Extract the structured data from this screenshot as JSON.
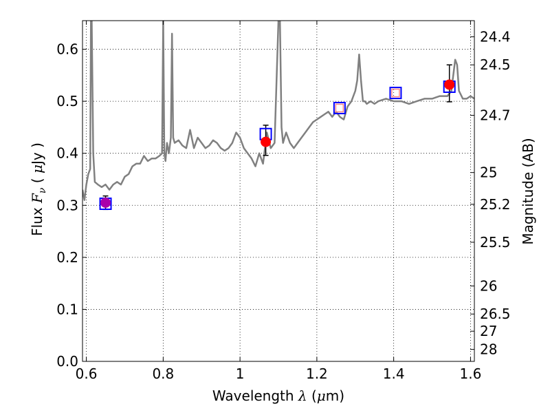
{
  "chart_data": {
    "type": "line",
    "xlabel": {
      "prefix": "Wavelength  ",
      "symbol": "λ",
      "unit_open": " (",
      "unit_mu": "μ",
      "unit_rest": "m)"
    },
    "ylabel": {
      "prefix": "Flux  ",
      "symbol": "F",
      "sub": "ν",
      "unit_open": "  ( ",
      "unit_mu": "μ",
      "unit_rest": "Jy )"
    },
    "y2label": "Magnitude (AB)",
    "xlim": [
      0.59,
      1.61
    ],
    "ylim": [
      0.0,
      0.655
    ],
    "grid": true,
    "xticks": [
      0.6,
      0.8,
      1.0,
      1.2,
      1.4,
      1.6
    ],
    "xtick_labels": [
      "0.6",
      "0.8",
      "1",
      "1.2",
      "1.4",
      "1.6"
    ],
    "yticks": [
      0.0,
      0.1,
      0.2,
      0.3,
      0.4,
      0.5,
      0.6
    ],
    "ytick_labels": [
      "0.0",
      "0.1",
      "0.2",
      "0.3",
      "0.4",
      "0.5",
      "0.6"
    ],
    "y2ticks": [
      {
        "label": "24.4",
        "flux": 0.624
      },
      {
        "label": "24.5",
        "flux": 0.57
      },
      {
        "label": "24.7",
        "flux": 0.473
      },
      {
        "label": "25",
        "flux": 0.363
      },
      {
        "label": "25.2",
        "flux": 0.302
      },
      {
        "label": "25.5",
        "flux": 0.229
      },
      {
        "label": "26",
        "flux": 0.145
      },
      {
        "label": "26.5",
        "flux": 0.091
      },
      {
        "label": "27",
        "flux": 0.058
      },
      {
        "label": "28",
        "flux": 0.023
      }
    ],
    "series": [
      {
        "style": "line",
        "color": "#808080",
        "x": [
          0.59,
          0.595,
          0.6,
          0.605,
          0.61,
          0.612,
          0.614,
          0.618,
          0.622,
          0.63,
          0.64,
          0.65,
          0.66,
          0.67,
          0.68,
          0.69,
          0.7,
          0.71,
          0.72,
          0.73,
          0.74,
          0.75,
          0.76,
          0.77,
          0.78,
          0.79,
          0.797,
          0.8,
          0.803,
          0.806,
          0.81,
          0.815,
          0.82,
          0.823,
          0.826,
          0.83,
          0.84,
          0.85,
          0.86,
          0.87,
          0.88,
          0.89,
          0.9,
          0.91,
          0.92,
          0.93,
          0.94,
          0.95,
          0.96,
          0.97,
          0.98,
          0.99,
          1.0,
          1.01,
          1.02,
          1.03,
          1.04,
          1.05,
          1.06,
          1.07,
          1.08,
          1.09,
          1.1,
          1.104,
          1.108,
          1.112,
          1.116,
          1.12,
          1.13,
          1.14,
          1.15,
          1.16,
          1.17,
          1.18,
          1.19,
          1.2,
          1.21,
          1.22,
          1.23,
          1.24,
          1.25,
          1.26,
          1.27,
          1.28,
          1.29,
          1.3,
          1.305,
          1.31,
          1.315,
          1.32,
          1.325,
          1.33,
          1.34,
          1.35,
          1.36,
          1.38,
          1.4,
          1.42,
          1.44,
          1.46,
          1.48,
          1.5,
          1.52,
          1.54,
          1.55,
          1.56,
          1.565,
          1.57,
          1.58,
          1.59,
          1.6,
          1.61
        ],
        "y": [
          0.33,
          0.31,
          0.34,
          0.36,
          0.37,
          0.655,
          0.655,
          0.4,
          0.345,
          0.34,
          0.335,
          0.34,
          0.33,
          0.34,
          0.345,
          0.34,
          0.355,
          0.36,
          0.375,
          0.38,
          0.38,
          0.395,
          0.385,
          0.39,
          0.39,
          0.395,
          0.4,
          0.655,
          0.4,
          0.385,
          0.42,
          0.4,
          0.43,
          0.63,
          0.43,
          0.42,
          0.425,
          0.415,
          0.41,
          0.445,
          0.41,
          0.43,
          0.42,
          0.41,
          0.415,
          0.425,
          0.42,
          0.41,
          0.405,
          0.41,
          0.42,
          0.44,
          0.43,
          0.41,
          0.4,
          0.39,
          0.375,
          0.4,
          0.38,
          0.44,
          0.41,
          0.42,
          0.655,
          0.655,
          0.45,
          0.42,
          0.43,
          0.44,
          0.42,
          0.41,
          0.42,
          0.43,
          0.44,
          0.45,
          0.46,
          0.465,
          0.47,
          0.475,
          0.48,
          0.47,
          0.48,
          0.47,
          0.465,
          0.49,
          0.5,
          0.52,
          0.54,
          0.59,
          0.54,
          0.5,
          0.5,
          0.495,
          0.5,
          0.495,
          0.5,
          0.505,
          0.5,
          0.5,
          0.495,
          0.5,
          0.505,
          0.505,
          0.51,
          0.51,
          0.52,
          0.58,
          0.57,
          0.52,
          0.505,
          0.505,
          0.51,
          0.505
        ]
      },
      {
        "style": "open-square",
        "color": "#0000ff",
        "x": [
          0.65,
          1.067,
          1.259,
          1.405,
          1.545
        ],
        "y": [
          0.303,
          0.437,
          0.487,
          0.516,
          0.528
        ]
      },
      {
        "style": "open-square",
        "color": "#ff8888",
        "x": [
          1.259,
          1.405
        ],
        "y": [
          0.487,
          0.516
        ]
      },
      {
        "style": "filled-circle",
        "color": "#ff0000",
        "x": [
          1.067,
          1.545
        ],
        "y": [
          0.422,
          0.532
        ],
        "err_low": [
          0.396,
          0.499
        ],
        "err_high": [
          0.454,
          0.57
        ]
      },
      {
        "style": "filled-circle",
        "color": "#aa00aa",
        "x": [
          0.65
        ],
        "y": [
          0.305
        ],
        "err_low": [
          0.292
        ],
        "err_high": [
          0.318
        ]
      }
    ]
  }
}
